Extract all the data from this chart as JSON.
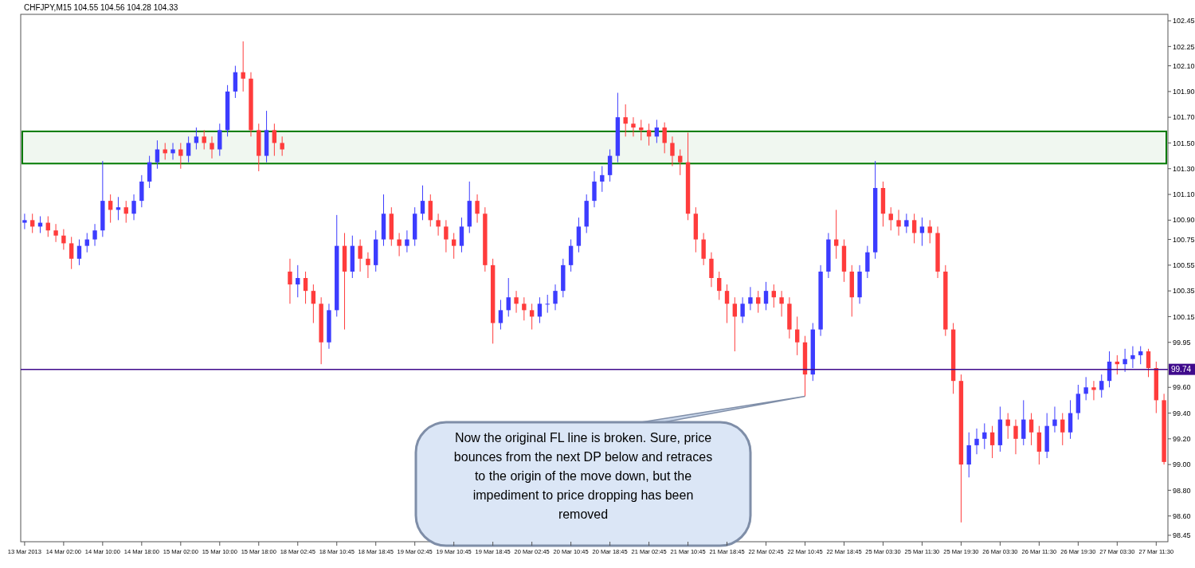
{
  "chart_data": {
    "type": "candlestick",
    "title": "CHFJPY,M15  104.55 104.56 104.28 104.33",
    "categories": [
      "13 Mar 2013",
      null,
      null,
      null,
      null,
      "14 Mar 02:00",
      null,
      null,
      null,
      null,
      "14 Mar 10:00",
      null,
      null,
      null,
      null,
      "14 Mar 18:00",
      null,
      null,
      null,
      null,
      "15 Mar 02:00",
      null,
      null,
      null,
      null,
      "15 Mar 10:00",
      null,
      null,
      null,
      null,
      "15 Mar 18:00",
      null,
      null,
      null,
      null,
      "18 Mar 02:45",
      null,
      null,
      null,
      null,
      "18 Mar 10:45",
      null,
      null,
      null,
      null,
      "18 Mar 18:45",
      null,
      null,
      null,
      null,
      "19 Mar 02:45",
      null,
      null,
      null,
      null,
      "19 Mar 10:45",
      null,
      null,
      null,
      null,
      "19 Mar 18:45",
      null,
      null,
      null,
      null,
      "20 Mar 02:45",
      null,
      null,
      null,
      null,
      "20 Mar 10:45",
      null,
      null,
      null,
      null,
      "20 Mar 18:45",
      null,
      null,
      null,
      null,
      "21 Mar 02:45",
      null,
      null,
      null,
      null,
      "21 Mar 10:45",
      null,
      null,
      null,
      null,
      "21 Mar 18:45",
      null,
      null,
      null,
      null,
      "22 Mar 02:45",
      null,
      null,
      null,
      null,
      "22 Mar 10:45",
      null,
      null,
      null,
      null,
      "22 Mar 18:45",
      null,
      null,
      null,
      null,
      "25 Mar 03:30",
      null,
      null,
      null,
      null,
      "25 Mar 11:30",
      null,
      null,
      null,
      null,
      "25 Mar 19:30",
      null,
      null,
      null,
      null,
      "26 Mar 03:30",
      null,
      null,
      null,
      null,
      "26 Mar 11:30",
      null,
      null,
      null,
      null,
      "26 Mar 19:30",
      null,
      null,
      null,
      null,
      "27 Mar 03:30",
      null,
      null,
      null,
      null,
      "27 Mar 11:30",
      null
    ],
    "ohlc": [
      [
        100.88,
        100.95,
        100.83,
        100.9
      ],
      [
        100.9,
        100.95,
        100.8,
        100.85
      ],
      [
        100.85,
        100.93,
        100.8,
        100.88
      ],
      [
        100.88,
        100.93,
        100.77,
        100.82
      ],
      [
        100.82,
        100.87,
        100.73,
        100.78
      ],
      [
        100.78,
        100.83,
        100.67,
        100.72
      ],
      [
        100.72,
        100.77,
        100.52,
        100.6
      ],
      [
        100.6,
        100.75,
        100.55,
        100.7
      ],
      [
        100.7,
        100.8,
        100.65,
        100.75
      ],
      [
        100.75,
        100.87,
        100.7,
        100.82
      ],
      [
        100.82,
        101.36,
        100.77,
        101.05
      ],
      [
        101.05,
        101.1,
        100.88,
        100.98
      ],
      [
        100.98,
        101.08,
        100.9,
        101.0
      ],
      [
        101.0,
        101.05,
        100.88,
        100.95
      ],
      [
        100.95,
        101.1,
        100.9,
        101.05
      ],
      [
        101.05,
        101.25,
        101.0,
        101.2
      ],
      [
        101.2,
        101.4,
        101.15,
        101.35
      ],
      [
        101.35,
        101.52,
        101.3,
        101.45
      ],
      [
        101.45,
        101.5,
        101.37,
        101.42
      ],
      [
        101.42,
        101.5,
        101.37,
        101.45
      ],
      [
        101.45,
        101.5,
        101.3,
        101.4
      ],
      [
        101.4,
        101.55,
        101.35,
        101.5
      ],
      [
        101.5,
        101.62,
        101.45,
        101.55
      ],
      [
        101.55,
        101.6,
        101.45,
        101.5
      ],
      [
        101.5,
        101.55,
        101.38,
        101.45
      ],
      [
        101.45,
        101.65,
        101.4,
        101.6
      ],
      [
        101.6,
        101.95,
        101.55,
        101.9
      ],
      [
        101.9,
        102.1,
        101.85,
        102.05
      ],
      [
        102.05,
        102.29,
        101.9,
        102.0
      ],
      [
        102.0,
        102.05,
        101.55,
        101.6
      ],
      [
        101.6,
        101.65,
        101.28,
        101.4
      ],
      [
        101.4,
        101.75,
        101.35,
        101.6
      ],
      [
        101.6,
        101.65,
        101.4,
        101.5
      ],
      [
        101.5,
        101.55,
        101.4,
        101.45
      ],
      [
        100.5,
        100.6,
        100.25,
        100.4
      ],
      [
        100.4,
        100.55,
        100.3,
        100.45
      ],
      [
        100.45,
        100.5,
        100.25,
        100.35
      ],
      [
        100.35,
        100.4,
        100.1,
        100.25
      ],
      [
        100.25,
        100.3,
        99.78,
        99.95
      ],
      [
        99.95,
        100.25,
        99.9,
        100.2
      ],
      [
        100.2,
        100.94,
        100.15,
        100.7
      ],
      [
        100.7,
        100.8,
        100.05,
        100.5
      ],
      [
        100.5,
        100.78,
        100.45,
        100.7
      ],
      [
        100.7,
        100.75,
        100.5,
        100.6
      ],
      [
        100.6,
        100.65,
        100.45,
        100.55
      ],
      [
        100.55,
        100.82,
        100.5,
        100.75
      ],
      [
        100.75,
        101.1,
        100.7,
        100.95
      ],
      [
        100.95,
        101.0,
        100.7,
        100.75
      ],
      [
        100.75,
        100.8,
        100.62,
        100.7
      ],
      [
        100.7,
        100.82,
        100.65,
        100.75
      ],
      [
        100.75,
        101.0,
        100.7,
        100.95
      ],
      [
        100.95,
        101.17,
        100.9,
        101.05
      ],
      [
        101.05,
        101.1,
        100.85,
        100.9
      ],
      [
        100.9,
        100.95,
        100.78,
        100.85
      ],
      [
        100.85,
        100.9,
        100.65,
        100.75
      ],
      [
        100.75,
        100.8,
        100.6,
        100.7
      ],
      [
        100.7,
        100.92,
        100.65,
        100.85
      ],
      [
        100.85,
        101.2,
        100.8,
        101.05
      ],
      [
        101.05,
        101.1,
        100.88,
        100.95
      ],
      [
        100.95,
        101.0,
        100.5,
        100.55
      ],
      [
        100.55,
        100.6,
        99.94,
        100.1
      ],
      [
        100.1,
        100.28,
        100.05,
        100.2
      ],
      [
        100.2,
        100.45,
        100.15,
        100.3
      ],
      [
        100.3,
        100.35,
        100.18,
        100.25
      ],
      [
        100.25,
        100.3,
        100.12,
        100.2
      ],
      [
        100.2,
        100.25,
        100.05,
        100.15
      ],
      [
        100.15,
        100.3,
        100.1,
        100.25
      ],
      [
        100.25,
        100.32,
        100.18,
        100.25
      ],
      [
        100.25,
        100.4,
        100.2,
        100.35
      ],
      [
        100.35,
        100.6,
        100.3,
        100.55
      ],
      [
        100.55,
        100.75,
        100.5,
        100.7
      ],
      [
        100.7,
        100.92,
        100.65,
        100.85
      ],
      [
        100.85,
        101.1,
        100.8,
        101.05
      ],
      [
        101.05,
        101.28,
        101.0,
        101.2
      ],
      [
        101.2,
        101.32,
        101.12,
        101.25
      ],
      [
        101.25,
        101.45,
        101.2,
        101.4
      ],
      [
        101.4,
        101.89,
        101.35,
        101.7
      ],
      [
        101.7,
        101.8,
        101.55,
        101.65
      ],
      [
        101.65,
        101.7,
        101.55,
        101.62
      ],
      [
        101.62,
        101.68,
        101.52,
        101.6
      ],
      [
        101.6,
        101.65,
        101.48,
        101.55
      ],
      [
        101.55,
        101.68,
        101.5,
        101.62
      ],
      [
        101.62,
        101.66,
        101.42,
        101.5
      ],
      [
        101.5,
        101.55,
        101.32,
        101.4
      ],
      [
        101.4,
        101.45,
        101.25,
        101.35
      ],
      [
        101.35,
        101.58,
        100.9,
        100.95
      ],
      [
        100.95,
        101.0,
        100.65,
        100.75
      ],
      [
        100.75,
        100.8,
        100.55,
        100.6
      ],
      [
        100.6,
        100.65,
        100.38,
        100.45
      ],
      [
        100.45,
        100.5,
        100.28,
        100.35
      ],
      [
        100.35,
        100.4,
        100.1,
        100.25
      ],
      [
        100.25,
        100.3,
        99.88,
        100.15
      ],
      [
        100.15,
        100.3,
        100.1,
        100.25
      ],
      [
        100.25,
        100.38,
        100.2,
        100.3
      ],
      [
        100.3,
        100.35,
        100.18,
        100.25
      ],
      [
        100.25,
        100.42,
        100.2,
        100.35
      ],
      [
        100.35,
        100.4,
        100.22,
        100.3
      ],
      [
        100.3,
        100.35,
        100.15,
        100.25
      ],
      [
        100.25,
        100.3,
        99.98,
        100.05
      ],
      [
        100.05,
        100.15,
        99.85,
        99.95
      ],
      [
        99.95,
        100.0,
        99.53,
        99.7
      ],
      [
        99.7,
        100.1,
        99.65,
        100.05
      ],
      [
        100.05,
        100.55,
        100.0,
        100.5
      ],
      [
        100.5,
        100.8,
        100.45,
        100.75
      ],
      [
        100.75,
        100.98,
        100.6,
        100.7
      ],
      [
        100.7,
        100.75,
        100.42,
        100.5
      ],
      [
        100.5,
        100.55,
        100.15,
        100.3
      ],
      [
        100.3,
        100.55,
        100.25,
        100.5
      ],
      [
        100.5,
        100.7,
        100.45,
        100.65
      ],
      [
        100.65,
        101.36,
        100.6,
        101.15
      ],
      [
        101.15,
        101.2,
        100.85,
        100.95
      ],
      [
        100.95,
        101.0,
        100.82,
        100.9
      ],
      [
        100.9,
        100.98,
        100.78,
        100.85
      ],
      [
        100.85,
        100.95,
        100.8,
        100.9
      ],
      [
        100.9,
        100.95,
        100.72,
        100.8
      ],
      [
        100.8,
        100.92,
        100.7,
        100.85
      ],
      [
        100.85,
        100.9,
        100.72,
        100.8
      ],
      [
        100.8,
        100.85,
        100.45,
        100.5
      ],
      [
        100.5,
        100.55,
        100.0,
        100.05
      ],
      [
        100.05,
        100.1,
        99.55,
        99.65
      ],
      [
        99.65,
        99.7,
        98.55,
        99.0
      ],
      [
        99.0,
        99.25,
        98.9,
        99.15
      ],
      [
        99.15,
        99.28,
        99.08,
        99.2
      ],
      [
        99.2,
        99.32,
        99.12,
        99.25
      ],
      [
        99.25,
        99.3,
        99.05,
        99.15
      ],
      [
        99.15,
        99.45,
        99.1,
        99.35
      ],
      [
        99.35,
        99.4,
        99.2,
        99.3
      ],
      [
        99.3,
        99.35,
        99.08,
        99.2
      ],
      [
        99.2,
        99.5,
        99.15,
        99.35
      ],
      [
        99.35,
        99.4,
        99.15,
        99.25
      ],
      [
        99.25,
        99.3,
        99.0,
        99.1
      ],
      [
        99.1,
        99.4,
        99.05,
        99.3
      ],
      [
        99.3,
        99.45,
        99.25,
        99.35
      ],
      [
        99.35,
        99.4,
        99.15,
        99.25
      ],
      [
        99.25,
        99.5,
        99.2,
        99.4
      ],
      [
        99.4,
        99.62,
        99.35,
        99.55
      ],
      [
        99.55,
        99.68,
        99.5,
        99.6
      ],
      [
        99.6,
        99.65,
        99.5,
        99.58
      ],
      [
        99.58,
        99.7,
        99.52,
        99.65
      ],
      [
        99.65,
        99.88,
        99.6,
        99.8
      ],
      [
        99.8,
        99.85,
        99.7,
        99.78
      ],
      [
        99.78,
        99.9,
        99.72,
        99.82
      ],
      [
        99.82,
        99.92,
        99.75,
        99.85
      ],
      [
        99.85,
        99.92,
        99.78,
        99.88
      ],
      [
        99.88,
        99.9,
        99.68,
        99.75
      ],
      [
        99.75,
        99.8,
        99.4,
        99.5
      ],
      [
        99.5,
        99.55,
        99.0,
        99.02
      ]
    ],
    "colors": [
      "#3c3cff",
      "#ff3c3c",
      "#3c3cff",
      "#ff3c3c",
      "#ff3c3c",
      "#ff3c3c",
      "#ff3c3c",
      "#3c3cff",
      "#3c3cff",
      "#3c3cff",
      "#3c3cff",
      "#ff3c3c",
      "#3c3cff",
      "#ff3c3c",
      "#3c3cff",
      "#3c3cff",
      "#3c3cff",
      "#3c3cff",
      "#ff3c3c",
      "#3c3cff",
      "#ff3c3c",
      "#3c3cff",
      "#3c3cff",
      "#ff3c3c",
      "#ff3c3c",
      "#3c3cff",
      "#3c3cff",
      "#3c3cff",
      "#ff3c3c",
      "#ff3c3c",
      "#ff3c3c",
      "#3c3cff",
      "#ff3c3c",
      "#ff3c3c",
      "#ff3c3c",
      "#3c3cff",
      "#ff3c3c",
      "#ff3c3c",
      "#ff3c3c",
      "#3c3cff",
      "#3c3cff",
      "#ff3c3c",
      "#3c3cff",
      "#ff3c3c",
      "#ff3c3c",
      "#3c3cff",
      "#3c3cff",
      "#ff3c3c",
      "#ff3c3c",
      "#3c3cff",
      "#3c3cff",
      "#3c3cff",
      "#ff3c3c",
      "#ff3c3c",
      "#ff3c3c",
      "#ff3c3c",
      "#3c3cff",
      "#3c3cff",
      "#ff3c3c",
      "#ff3c3c",
      "#ff3c3c",
      "#3c3cff",
      "#3c3cff",
      "#ff3c3c",
      "#ff3c3c",
      "#ff3c3c",
      "#3c3cff",
      "#3c3cff",
      "#3c3cff",
      "#3c3cff",
      "#3c3cff",
      "#3c3cff",
      "#3c3cff",
      "#3c3cff",
      "#3c3cff",
      "#3c3cff",
      "#3c3cff",
      "#ff3c3c",
      "#ff3c3c",
      "#ff3c3c",
      "#ff3c3c",
      "#3c3cff",
      "#ff3c3c",
      "#ff3c3c",
      "#ff3c3c",
      "#ff3c3c",
      "#ff3c3c",
      "#ff3c3c",
      "#ff3c3c",
      "#ff3c3c",
      "#ff3c3c",
      "#ff3c3c",
      "#3c3cff",
      "#3c3cff",
      "#ff3c3c",
      "#3c3cff",
      "#ff3c3c",
      "#ff3c3c",
      "#ff3c3c",
      "#ff3c3c",
      "#ff3c3c",
      "#3c3cff",
      "#3c3cff",
      "#3c3cff",
      "#ff3c3c",
      "#ff3c3c",
      "#ff3c3c",
      "#3c3cff",
      "#3c3cff",
      "#3c3cff",
      "#ff3c3c",
      "#ff3c3c",
      "#ff3c3c",
      "#3c3cff",
      "#ff3c3c",
      "#3c3cff",
      "#ff3c3c",
      "#ff3c3c",
      "#ff3c3c",
      "#ff3c3c",
      "#ff3c3c",
      "#3c3cff",
      "#3c3cff",
      "#3c3cff",
      "#ff3c3c",
      "#3c3cff",
      "#ff3c3c",
      "#ff3c3c",
      "#3c3cff",
      "#ff3c3c",
      "#ff3c3c",
      "#3c3cff",
      "#3c3cff",
      "#ff3c3c",
      "#3c3cff",
      "#3c3cff",
      "#3c3cff",
      "#ff3c3c",
      "#3c3cff",
      "#3c3cff",
      "#ff3c3c",
      "#3c3cff",
      "#3c3cff",
      "#3c3cff",
      "#ff3c3c",
      "#ff3c3c",
      "#ff3c3c"
    ],
    "ylim": [
      98.4,
      102.5
    ],
    "yticks": [
      102.45,
      102.25,
      {
        "value": 102.1,
        "label": "102.10"
      },
      {
        "value": 101.9,
        "label": "101.90"
      },
      {
        "value": 101.7,
        "label": "101.70"
      },
      {
        "value": 101.5,
        "label": "101.50"
      },
      {
        "value": 101.3,
        "label": "101.30"
      },
      {
        "value": 101.1,
        "label": "101.10"
      },
      {
        "value": 100.9,
        "label": "100.90"
      },
      100.75,
      100.55,
      100.35,
      100.15,
      99.95,
      {
        "value": 99.6,
        "label": "99.60"
      },
      {
        "value": 99.4,
        "label": "99.40"
      },
      {
        "value": 99.2,
        "label": "99.20"
      },
      {
        "value": 99.0,
        "label": "99.00"
      },
      {
        "value": 98.8,
        "label": "98.80"
      },
      {
        "value": 98.6,
        "label": "98.60"
      },
      98.45
    ],
    "ref_lines": [
      {
        "axis": "y",
        "value": 99.74,
        "label": "99.74",
        "color": "#3f0a8c"
      }
    ],
    "bands": [
      {
        "axis": "y",
        "from": 101.34,
        "to": 101.59,
        "color": "#007a00"
      }
    ],
    "annotations": [
      {
        "text": "Now the original FL line is broken. Sure, price bounces from the next DP below and retraces to the origin of the move down, but the impediment to price dropping has been removed",
        "x": "22 Mar 10:45",
        "y": 99.53
      }
    ],
    "grid": false
  }
}
